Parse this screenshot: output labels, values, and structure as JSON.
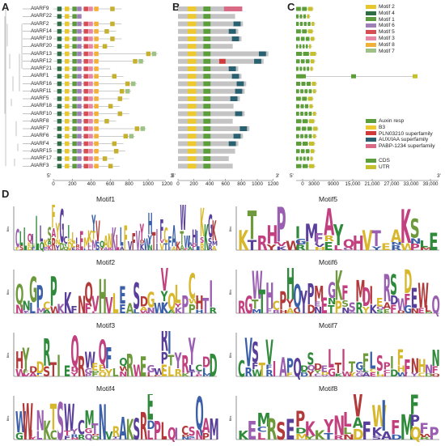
{
  "panels": {
    "a": "A",
    "b": "B",
    "c": "C",
    "d": "D"
  },
  "genes": [
    "AtARF9",
    "AtARF22",
    "AtARF2",
    "AtARF14",
    "AtARF19",
    "AtARF20",
    "AtARF13",
    "AtARF12",
    "AtARF21",
    "AtARF1",
    "AtARF16",
    "AtARF11",
    "AtARF5",
    "AtARF18",
    "AtARF10",
    "AtARF8",
    "AtARF7",
    "AtARF6",
    "AtARF4",
    "AtARF15",
    "AtARF17",
    "AtARF3"
  ],
  "axis_a": {
    "ticks": [
      "0",
      "200",
      "400",
      "600",
      "800",
      "1000",
      "1200"
    ],
    "start": "5'",
    "end": "3'"
  },
  "axis_b": {
    "ticks": [
      "0",
      "200",
      "400",
      "600",
      "800",
      "1000",
      "1200"
    ],
    "start": "5'",
    "end": "3'"
  },
  "axis_c": {
    "ticks": [
      "0",
      "3000",
      "9000",
      "15,000",
      "21,000",
      "27,000",
      "33,000",
      "39,000"
    ],
    "start": "5'",
    "end": "3'"
  },
  "legend_motifs": [
    {
      "label": "Motif 2",
      "color": "#e6c72e"
    },
    {
      "label": "Motif 4",
      "color": "#2f6e45"
    },
    {
      "label": "Motif 1",
      "color": "#5b9b3c"
    },
    {
      "label": "Motif 6",
      "color": "#a07fb8"
    },
    {
      "label": "Motif 5",
      "color": "#d64d52"
    },
    {
      "label": "Motif 3",
      "color": "#e887a4"
    },
    {
      "label": "Motif 8",
      "color": "#f0b03a"
    },
    {
      "label": "Motif 7",
      "color": "#9ec285"
    }
  ],
  "legend_domains": [
    {
      "label": "Auxin resp",
      "color": "#5c9e3a"
    },
    {
      "label": "B3",
      "color": "#ecc92e"
    },
    {
      "label": "PLN03210 superfamily",
      "color": "#d23a3a"
    },
    {
      "label": "AUX/IAA superfamily",
      "color": "#2a6170"
    },
    {
      "label": "PABP-1234 superfamily",
      "color": "#d86a86"
    }
  ],
  "legend_structure": [
    {
      "label": "CDS",
      "color": "#5c9e3a"
    },
    {
      "label": "UTR",
      "color": "#c6c02e"
    }
  ],
  "motif_titles": [
    "Motif1",
    "Motif5",
    "Motif2",
    "Motif6",
    "Motif3",
    "Motif7",
    "Motif4",
    "Motif8"
  ],
  "logo_axis_label": "Bits",
  "colors": {
    "gray_bar": "#c4c4c4",
    "line": "#999999"
  }
}
